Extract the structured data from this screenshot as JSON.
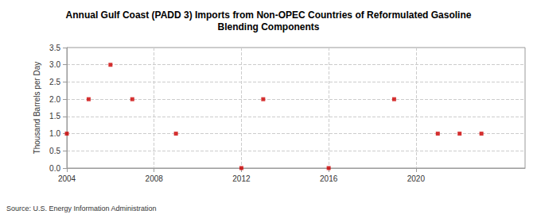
{
  "chart_data": {
    "type": "scatter",
    "title": "Annual Gulf Coast (PADD 3) Imports from Non-OPEC Countries of Reformulated Gasoline\nBlending Components",
    "y_label": "Thousand Barrels per Day",
    "annotations": [
      "Source: U.S. Energy Information Administration"
    ],
    "x": [
      2004,
      2005,
      2006,
      2007,
      2009,
      2012,
      2013,
      2016,
      2019,
      2021,
      2022,
      2023
    ],
    "values": [
      1,
      2,
      3,
      2,
      1,
      0,
      2,
      0,
      2,
      1,
      1,
      1
    ],
    "color": "#cc0000",
    "marker": "square",
    "xlim": [
      2004,
      2025
    ],
    "xticks": [
      2004,
      2008,
      2012,
      2016,
      2020
    ],
    "ylim": [
      0,
      3.5
    ],
    "yticks": [
      {
        "value": 0,
        "label": "0.0"
      },
      {
        "value": 0.5,
        "label": "0.5"
      },
      {
        "value": 1,
        "label": "1.0"
      },
      {
        "value": 1.5,
        "label": "1.5"
      },
      {
        "value": 2,
        "label": "2.0"
      },
      {
        "value": 2.5,
        "label": "2.5"
      },
      {
        "value": 3,
        "label": "3.0"
      },
      {
        "value": 3.5,
        "label": "3.5"
      }
    ],
    "grid": true
  }
}
